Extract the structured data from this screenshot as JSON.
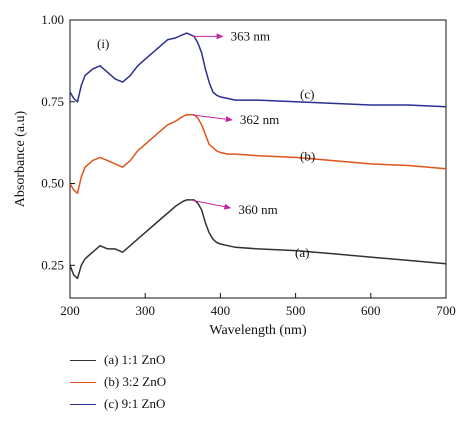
{
  "chart_data": {
    "type": "line",
    "xlabel": "Wavelength (nm)",
    "ylabel": "Absorbance (a.u)",
    "xlim": [
      200,
      700
    ],
    "ylim": [
      0.15,
      1.0
    ],
    "xticks": [
      200,
      300,
      400,
      500,
      600,
      700
    ],
    "yticks": [
      0.25,
      0.5,
      0.75,
      1.0
    ],
    "ytick_labels": [
      "0.25",
      "0.50",
      "0.75",
      "1.00"
    ],
    "panel_label": "(i)",
    "legend_position": "below-left",
    "series": [
      {
        "name": "(a) 1:1 ZnO",
        "curve_label": "(a)",
        "color": "#333333",
        "peak_label": "360 nm",
        "peak": [
          360,
          0.45
        ],
        "x": [
          200,
          205,
          210,
          215,
          220,
          225,
          230,
          240,
          250,
          260,
          270,
          280,
          290,
          300,
          310,
          320,
          330,
          340,
          350,
          355,
          360,
          365,
          370,
          375,
          380,
          385,
          390,
          395,
          400,
          410,
          420,
          450,
          500,
          550,
          600,
          650,
          700
        ],
        "y": [
          0.25,
          0.22,
          0.21,
          0.25,
          0.27,
          0.28,
          0.29,
          0.31,
          0.3,
          0.3,
          0.29,
          0.31,
          0.33,
          0.35,
          0.37,
          0.39,
          0.41,
          0.43,
          0.445,
          0.45,
          0.45,
          0.45,
          0.44,
          0.42,
          0.38,
          0.35,
          0.33,
          0.32,
          0.315,
          0.31,
          0.305,
          0.3,
          0.295,
          0.285,
          0.275,
          0.265,
          0.255
        ]
      },
      {
        "name": "(b) 3:2 ZnO",
        "curve_label": "(b)",
        "color": "#e0531b",
        "peak_label": "362 nm",
        "peak": [
          362,
          0.71
        ],
        "x": [
          200,
          205,
          210,
          215,
          220,
          225,
          230,
          240,
          250,
          260,
          270,
          280,
          290,
          300,
          310,
          320,
          330,
          340,
          350,
          355,
          360,
          365,
          370,
          375,
          380,
          385,
          390,
          395,
          400,
          410,
          420,
          450,
          500,
          550,
          600,
          650,
          700
        ],
        "y": [
          0.5,
          0.48,
          0.47,
          0.52,
          0.55,
          0.56,
          0.57,
          0.58,
          0.57,
          0.56,
          0.55,
          0.57,
          0.6,
          0.62,
          0.64,
          0.66,
          0.68,
          0.69,
          0.705,
          0.71,
          0.71,
          0.71,
          0.7,
          0.68,
          0.65,
          0.62,
          0.61,
          0.6,
          0.595,
          0.59,
          0.59,
          0.585,
          0.58,
          0.57,
          0.56,
          0.555,
          0.545
        ]
      },
      {
        "name": "(c) 9:1 ZnO",
        "curve_label": "(c)",
        "color": "#2b2f8f",
        "peak_label": "363 nm",
        "peak": [
          363,
          0.95
        ],
        "x": [
          200,
          205,
          210,
          215,
          220,
          225,
          230,
          240,
          250,
          260,
          270,
          280,
          290,
          300,
          310,
          320,
          330,
          340,
          350,
          355,
          360,
          365,
          370,
          375,
          380,
          385,
          390,
          395,
          400,
          410,
          420,
          450,
          500,
          550,
          600,
          650,
          700
        ],
        "y": [
          0.78,
          0.76,
          0.75,
          0.8,
          0.83,
          0.84,
          0.85,
          0.86,
          0.84,
          0.82,
          0.81,
          0.83,
          0.86,
          0.88,
          0.9,
          0.92,
          0.94,
          0.945,
          0.955,
          0.96,
          0.955,
          0.95,
          0.93,
          0.9,
          0.85,
          0.81,
          0.78,
          0.77,
          0.765,
          0.76,
          0.755,
          0.755,
          0.75,
          0.745,
          0.74,
          0.74,
          0.735
        ]
      }
    ]
  }
}
